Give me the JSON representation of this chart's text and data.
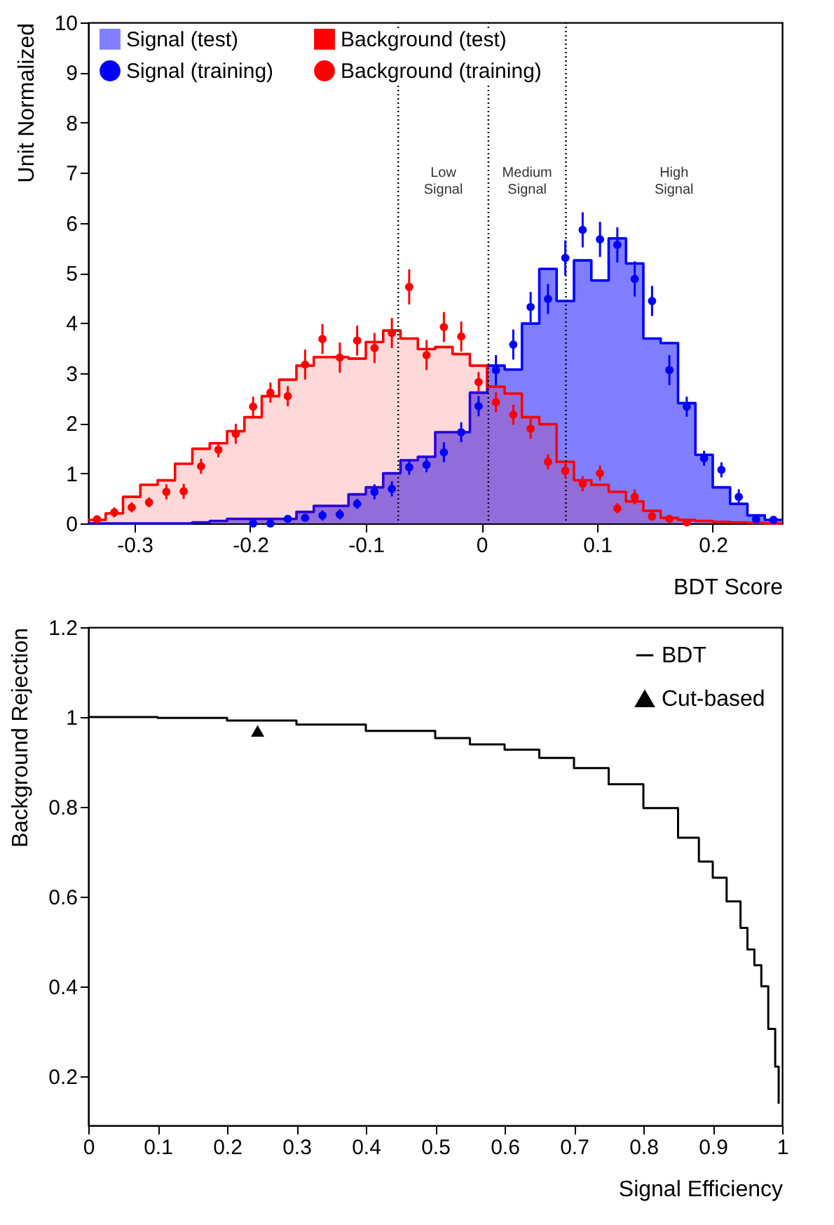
{
  "chart_data": [
    {
      "type": "histogram",
      "xlabel": "BDT Score",
      "ylabel": "Unit Normalized",
      "xlim": [
        -0.34,
        0.26
      ],
      "xticks": [
        -0.3,
        -0.2,
        -0.1,
        0,
        0.1,
        0.2
      ],
      "ylim": [
        0,
        10
      ],
      "yticks": [
        0,
        1,
        2,
        3,
        4,
        5,
        6,
        7,
        8,
        9,
        10
      ],
      "grid": false,
      "legend": "top",
      "bins": [
        -0.34,
        -0.325,
        -0.31,
        -0.295,
        -0.28,
        -0.265,
        -0.25,
        -0.235,
        -0.22,
        -0.205,
        -0.19,
        -0.175,
        -0.16,
        -0.145,
        -0.13,
        -0.115,
        -0.1,
        -0.085,
        -0.07,
        -0.055,
        -0.04,
        -0.025,
        -0.01,
        0.005,
        0.02,
        0.035,
        0.05,
        0.065,
        0.08,
        0.095,
        0.11,
        0.125,
        0.14,
        0.155,
        0.17,
        0.185,
        0.2,
        0.215,
        0.23,
        0.245,
        0.26
      ],
      "series": [
        {
          "name": "Signal (test)",
          "type": "histogram",
          "color": "#7f7fff",
          "values": [
            0,
            0,
            0,
            0,
            0,
            0,
            0.02,
            0.05,
            0.09,
            0.09,
            0.09,
            0.09,
            0.23,
            0.35,
            0.35,
            0.58,
            0.72,
            1.0,
            1.26,
            1.33,
            1.82,
            1.82,
            2.61,
            3.15,
            3.07,
            3.99,
            5.08,
            4.44,
            5.25,
            4.85,
            5.69,
            5.19,
            3.69,
            3.6,
            2.4,
            1.37,
            0.72,
            0.39,
            0.16,
            0.07
          ]
        },
        {
          "name": "Signal (training)",
          "type": "scatter",
          "marker": "circle",
          "color": "#0000ff",
          "x": [
            -0.1975,
            -0.1825,
            -0.1675,
            -0.1525,
            -0.1375,
            -0.1225,
            -0.1075,
            -0.0925,
            -0.0775,
            -0.0625,
            -0.0475,
            -0.0325,
            -0.0175,
            -0.0025,
            0.0125,
            0.0275,
            0.0425,
            0.0575,
            0.0725,
            0.0875,
            0.1025,
            0.1175,
            0.1325,
            0.1475,
            0.1625,
            0.1775,
            0.1925,
            0.2075,
            0.2225,
            0.2375,
            0.2525
          ],
          "values": [
            0,
            0,
            0.09,
            0.11,
            0.16,
            0.18,
            0.39,
            0.63,
            0.69,
            1.12,
            1.17,
            1.42,
            1.82,
            2.34,
            3.06,
            3.57,
            4.32,
            4.48,
            5.3,
            5.86,
            5.67,
            5.56,
            4.88,
            4.44,
            3.06,
            2.33,
            1.3,
            1.07,
            0.53,
            0.08,
            0.07
          ],
          "errors": [
            null,
            null,
            null,
            null,
            0.1,
            0.1,
            0.1,
            0.15,
            0.15,
            0.15,
            0.15,
            0.2,
            0.2,
            0.2,
            0.3,
            0.3,
            0.3,
            0.3,
            0.35,
            0.35,
            0.35,
            0.35,
            0.35,
            0.3,
            0.3,
            0.2,
            0.15,
            0.15,
            0.15,
            null,
            null
          ]
        },
        {
          "name": "Background (test)",
          "type": "histogram",
          "color": "#ff0000",
          "values": [
            0.07,
            0.2,
            0.53,
            0.77,
            0.86,
            1.19,
            1.49,
            1.6,
            1.84,
            2.12,
            2.54,
            2.87,
            3.15,
            3.32,
            3.32,
            3.29,
            3.62,
            3.85,
            3.69,
            3.48,
            3.52,
            3.38,
            3.15,
            2.73,
            2.59,
            2.12,
            1.98,
            1.23,
            0.86,
            0.77,
            0.63,
            0.44,
            0.25,
            0.11,
            0.07,
            0.05,
            0.03,
            0.02,
            0.01,
            0
          ]
        },
        {
          "name": "Background (training)",
          "type": "scatter",
          "marker": "circle",
          "color": "#ff0000",
          "x": [
            -0.3325,
            -0.3175,
            -0.3025,
            -0.2875,
            -0.2725,
            -0.2575,
            -0.2425,
            -0.2275,
            -0.2125,
            -0.1975,
            -0.1825,
            -0.1675,
            -0.1525,
            -0.1375,
            -0.1225,
            -0.1075,
            -0.0925,
            -0.0775,
            -0.0625,
            -0.0475,
            -0.0325,
            -0.0175,
            -0.0025,
            0.0125,
            0.0275,
            0.0425,
            0.0575,
            0.0725,
            0.0875,
            0.1025,
            0.1175,
            0.1325,
            0.1475,
            0.1625,
            0.1775
          ],
          "values": [
            0.08,
            0.22,
            0.32,
            0.42,
            0.63,
            0.64,
            1.14,
            1.47,
            1.79,
            2.33,
            2.61,
            2.54,
            3.17,
            3.68,
            3.31,
            3.65,
            3.5,
            3.8,
            4.72,
            3.36,
            3.92,
            3.73,
            2.82,
            2.42,
            2.17,
            1.89,
            1.23,
            1.05,
            0.79,
            1.0,
            0.3,
            0.53,
            0.14,
            0.09,
            0.02
          ],
          "errors": [
            null,
            0.1,
            0.1,
            0.1,
            0.15,
            0.15,
            0.15,
            0.15,
            0.2,
            0.2,
            0.2,
            0.2,
            0.3,
            0.3,
            0.3,
            0.3,
            0.3,
            0.3,
            0.35,
            0.3,
            0.3,
            0.3,
            0.2,
            0.2,
            0.2,
            0.2,
            0.15,
            0.15,
            0.15,
            0.15,
            0.1,
            0.15,
            null,
            null,
            null
          ]
        }
      ],
      "ref_lines": [
        {
          "axis": "x",
          "value": -0.072,
          "line_style": "dotted",
          "color": "#000000"
        },
        {
          "axis": "x",
          "value": 0.006,
          "line_style": "dotted",
          "color": "#000000"
        },
        {
          "axis": "x",
          "value": 0.073,
          "line_style": "dotted",
          "color": "#000000"
        }
      ],
      "annotations": [
        "Low Signal",
        "Medium Signal",
        "High Signal"
      ]
    },
    {
      "type": "step",
      "xlabel": "Signal Efficiency",
      "ylabel": "Background Rejection",
      "xlim": [
        0,
        1
      ],
      "xticks": [
        0,
        0.1,
        0.2,
        0.3,
        0.4,
        0.5,
        0.6,
        0.7,
        0.8,
        0.9,
        1
      ],
      "ylim": [
        0.09,
        1.2
      ],
      "yticks": [
        0.2,
        0.4,
        0.6,
        0.8,
        1,
        1.2
      ],
      "grid": false,
      "legend": "top right",
      "series": [
        {
          "name": "BDT",
          "type": "step",
          "color": "#000000",
          "x": [
            0,
            0.1,
            0.2,
            0.3,
            0.4,
            0.5,
            0.55,
            0.6,
            0.65,
            0.7,
            0.75,
            0.8,
            0.85,
            0.88,
            0.9,
            0.92,
            0.94,
            0.95,
            0.96,
            0.97,
            0.98,
            0.99,
            0.995
          ],
          "values": [
            1.0,
            0.998,
            0.992,
            0.983,
            0.969,
            0.953,
            0.939,
            0.927,
            0.909,
            0.886,
            0.85,
            0.797,
            0.731,
            0.678,
            0.642,
            0.589,
            0.53,
            0.482,
            0.447,
            0.4,
            0.305,
            0.221,
            0.138
          ]
        },
        {
          "name": "Cut-based",
          "type": "scatter",
          "marker": "triangle",
          "color": "#000000",
          "x": [
            0.244
          ],
          "values": [
            0.969
          ]
        }
      ]
    }
  ]
}
